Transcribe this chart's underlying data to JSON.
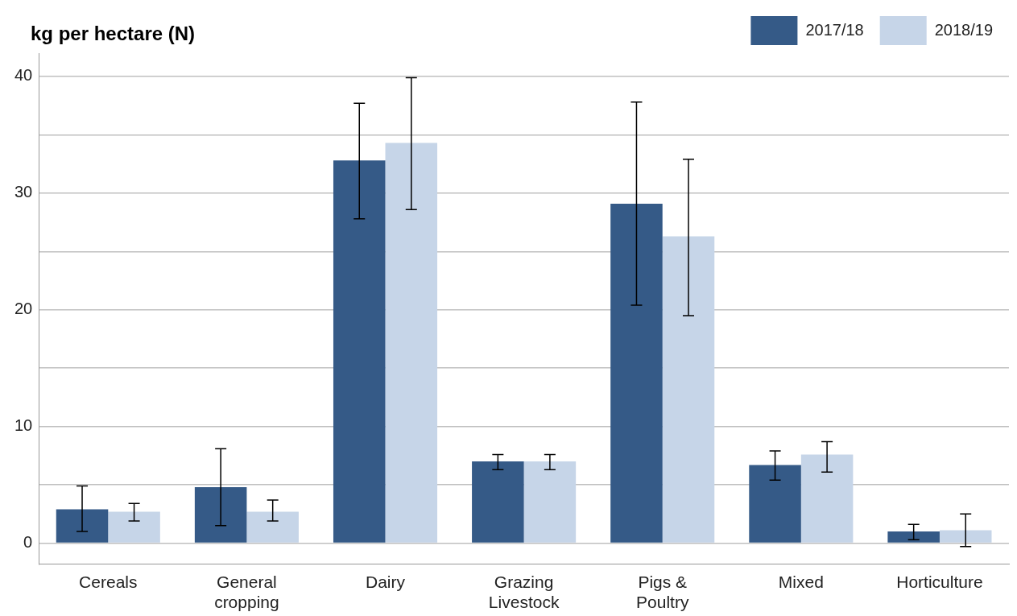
{
  "chart_data": {
    "type": "bar",
    "title": "kg per hectare (N)",
    "categories": [
      "Cereals",
      "General cropping",
      "Dairy",
      "Grazing Livestock",
      "Pigs & Poultry",
      "Mixed",
      "Horticulture"
    ],
    "series": [
      {
        "name": "2017/18",
        "color": "#355a87",
        "values": [
          2.9,
          4.8,
          32.8,
          7.0,
          29.1,
          6.7,
          1.0
        ],
        "errors": [
          [
            1.0,
            4.9
          ],
          [
            1.5,
            8.1
          ],
          [
            27.8,
            37.7
          ],
          [
            6.3,
            7.6
          ],
          [
            20.4,
            37.8
          ],
          [
            5.4,
            7.9
          ],
          [
            0.3,
            1.6
          ]
        ]
      },
      {
        "name": "2018/19",
        "color": "#c6d5e8",
        "values": [
          2.7,
          2.7,
          34.3,
          7.0,
          26.3,
          7.6,
          1.1
        ],
        "errors": [
          [
            1.9,
            3.4
          ],
          [
            1.9,
            3.7
          ],
          [
            28.6,
            39.9
          ],
          [
            6.3,
            7.6
          ],
          [
            19.5,
            32.9
          ],
          [
            6.1,
            8.7
          ],
          [
            -0.3,
            2.5
          ]
        ]
      }
    ],
    "ylim": [
      -1.8,
      42
    ],
    "yticks": [
      0,
      {
        "value": 5,
        "label": null
      },
      10,
      {
        "value": 15,
        "label": null
      },
      20,
      {
        "value": 25,
        "label": null
      },
      30,
      {
        "value": 35,
        "label": null
      },
      40
    ],
    "grid": "y",
    "legend": "top right"
  }
}
